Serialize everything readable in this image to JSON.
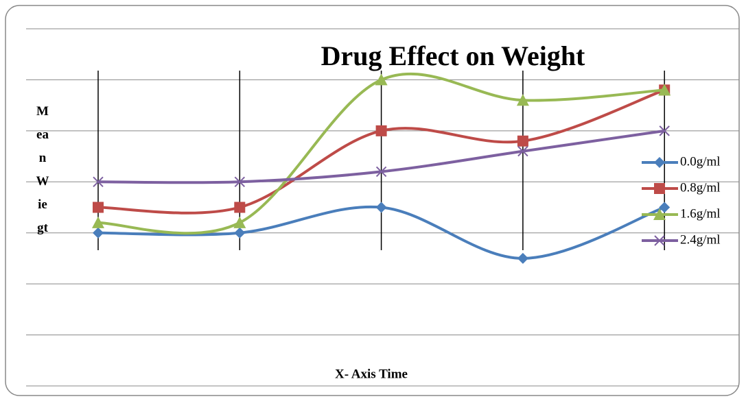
{
  "chart_data": {
    "type": "line",
    "title": "Drug Effect on Weight",
    "xlabel": "X- Axis Time",
    "ylabel": "MeanWiegt",
    "categories": [
      null,
      null,
      null,
      null,
      null
    ],
    "series": [
      {
        "name": "0.0g/ml",
        "color": "#4a7ebb",
        "marker": "diamond",
        "values": [
          3.0,
          3.0,
          3.5,
          2.5,
          3.5
        ]
      },
      {
        "name": "0.8g/ml",
        "color": "#be4b48",
        "marker": "square",
        "values": [
          3.5,
          3.5,
          5.0,
          4.8,
          5.8
        ]
      },
      {
        "name": "1.6g/ml",
        "color": "#98b954",
        "marker": "triangle",
        "values": [
          3.2,
          3.2,
          6.0,
          5.6,
          5.8
        ]
      },
      {
        "name": "2.4g/ml",
        "color": "#7d60a0",
        "marker": "x",
        "values": [
          4.0,
          4.0,
          4.2,
          4.6,
          5.0
        ]
      }
    ],
    "ylim": [
      0,
      7
    ],
    "yticks": [
      0,
      1,
      2,
      3,
      4,
      5,
      6,
      7
    ],
    "grid": true,
    "smooth": true,
    "legend": "right"
  }
}
